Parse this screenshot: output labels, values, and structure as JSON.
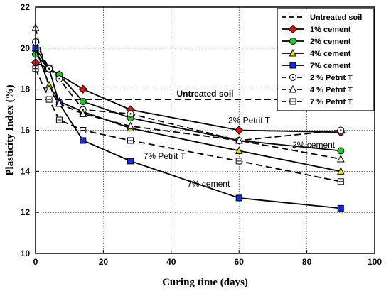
{
  "chart_data": {
    "type": "line",
    "xlabel": "Curing time (days)",
    "ylabel": "Plasticity Index  (%)",
    "xlim": [
      0,
      100
    ],
    "ylim": [
      10,
      22
    ],
    "xticks": [
      "0",
      "20",
      "40",
      "60",
      "80",
      "100"
    ],
    "yticks": [
      "10",
      "12",
      "14",
      "16",
      "18",
      "20",
      "22"
    ],
    "grid": true,
    "legend_position": "top-right",
    "series": [
      {
        "name": "Untreated soil",
        "marker": "none",
        "dashed": true,
        "color": "#000000",
        "x": [
          0,
          90
        ],
        "y": [
          17.5,
          17.5
        ]
      },
      {
        "name": "1% cement",
        "marker": "diamond",
        "dashed": false,
        "color": "#e01010",
        "x": [
          0,
          4,
          7,
          14,
          28,
          60,
          90
        ],
        "y": [
          19.3,
          19.0,
          18.7,
          18.0,
          17.0,
          16.0,
          15.9
        ]
      },
      {
        "name": "2% cement",
        "marker": "circle",
        "dashed": false,
        "color": "#22cc22",
        "x": [
          0,
          4,
          7,
          14,
          28,
          60,
          90
        ],
        "y": [
          19.7,
          19.0,
          18.7,
          17.4,
          16.6,
          15.5,
          15.0
        ]
      },
      {
        "name": "4% cement",
        "marker": "triangle",
        "dashed": false,
        "color": "#f0e000",
        "x": [
          0,
          4,
          7,
          14,
          28,
          60,
          90
        ],
        "y": [
          20.0,
          18.2,
          17.4,
          16.9,
          16.1,
          15.0,
          14.0
        ]
      },
      {
        "name": "7% cement",
        "marker": "square",
        "dashed": false,
        "color": "#1030e0",
        "x": [
          0,
          4,
          7,
          14,
          28,
          60,
          90
        ],
        "y": [
          20.0,
          19.0,
          17.3,
          15.5,
          14.5,
          12.7,
          12.2
        ]
      },
      {
        "name": "2 % Petrit T",
        "marker": "circle-open",
        "dashed": true,
        "color": "#000000",
        "x": [
          0,
          4,
          7,
          14,
          28,
          60,
          90
        ],
        "y": [
          20.3,
          19.0,
          18.5,
          17.0,
          16.8,
          15.5,
          16.0
        ]
      },
      {
        "name": "4 % Petrit T",
        "marker": "triangle-open",
        "dashed": true,
        "color": "#000000",
        "x": [
          0,
          4,
          7,
          14,
          28,
          60,
          90
        ],
        "y": [
          21.0,
          18.0,
          17.3,
          16.8,
          16.2,
          15.5,
          14.6
        ]
      },
      {
        "name": "7 % Petrit T",
        "marker": "square-open",
        "dashed": true,
        "color": "#000000",
        "x": [
          0,
          4,
          7,
          14,
          28,
          60,
          90
        ],
        "y": [
          19.0,
          17.5,
          16.5,
          16.0,
          15.5,
          14.5,
          13.5
        ]
      }
    ],
    "annotations": [
      {
        "text": "Untreated soil",
        "x": 50,
        "y": 17.65,
        "bold": true
      },
      {
        "text": "2% Petrit T",
        "x": 63,
        "y": 16.35,
        "bold": false
      },
      {
        "text": "2% cement",
        "x": 82,
        "y": 15.15,
        "bold": false
      },
      {
        "text": "7% Petrit T",
        "x": 38,
        "y": 14.6,
        "bold": false
      },
      {
        "text": "7% cement",
        "x": 51,
        "y": 13.25,
        "bold": false
      }
    ]
  }
}
